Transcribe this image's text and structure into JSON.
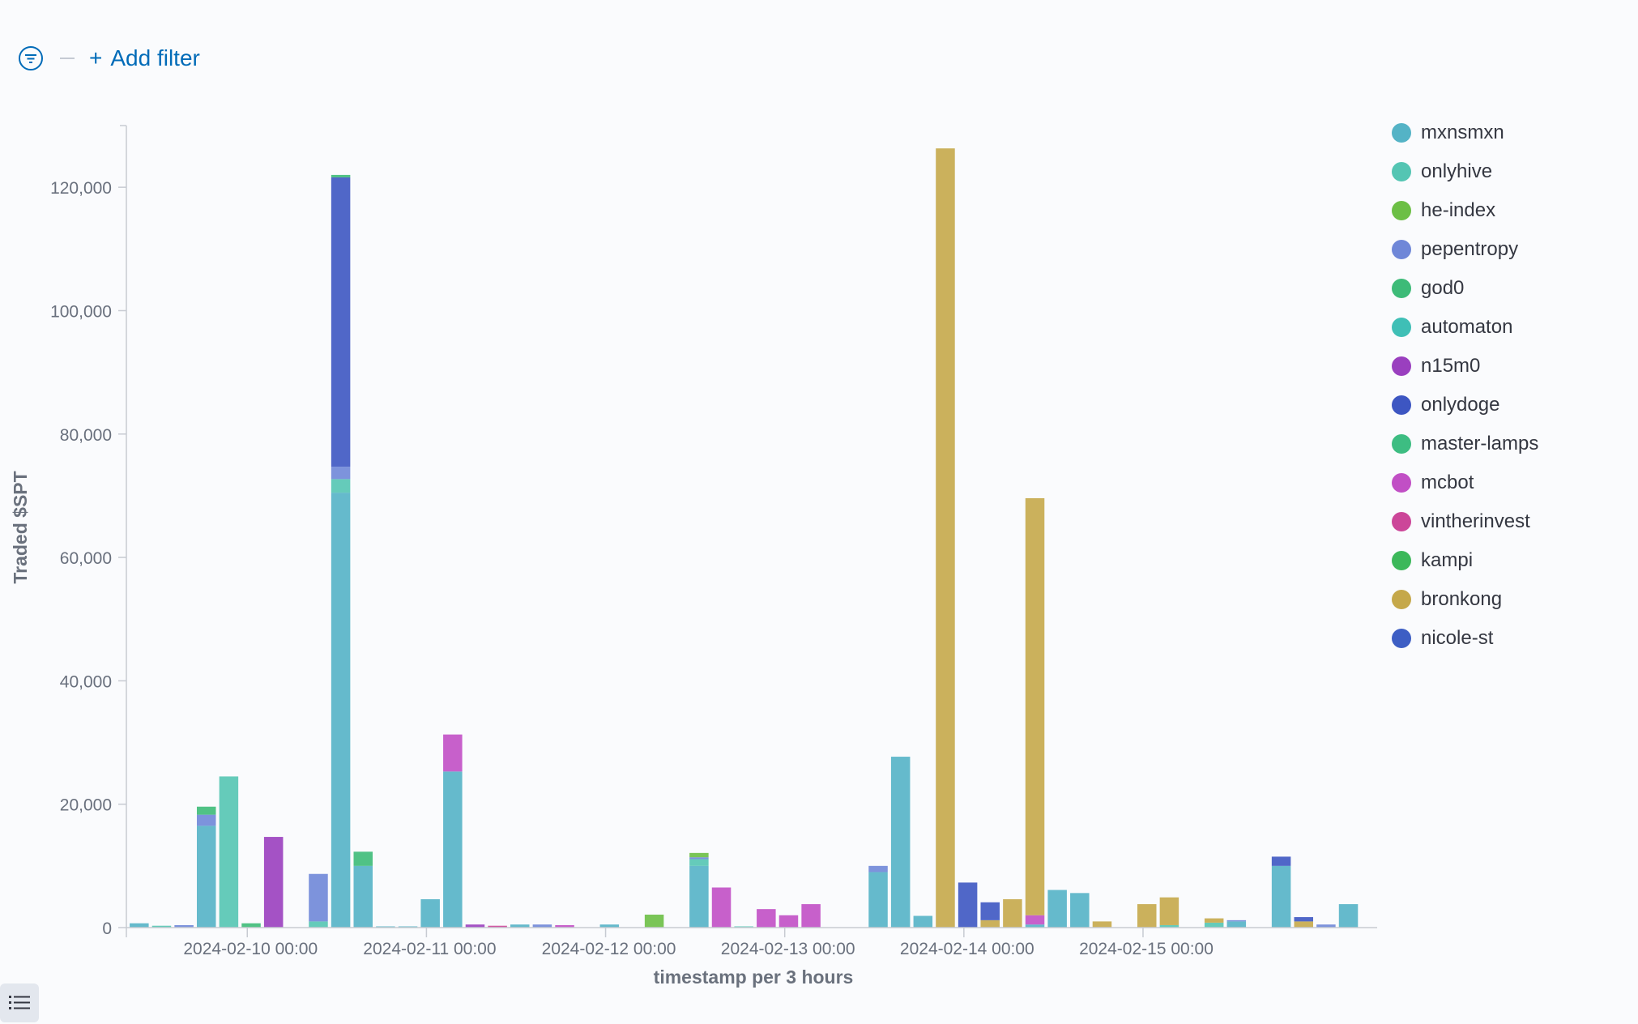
{
  "filter_bar": {
    "add_filter_label": "Add filter",
    "plus": "+"
  },
  "legend_toggle": {
    "icon": "list-icon"
  },
  "chart_data": {
    "type": "bar",
    "stacked": true,
    "xlabel": "timestamp per 3 hours",
    "ylabel": "Traded $SPT",
    "ylim": [
      0,
      130000
    ],
    "yticks": [
      0,
      20000,
      40000,
      60000,
      80000,
      100000,
      120000
    ],
    "ytick_labels": [
      "0",
      "20,000",
      "40,000",
      "60,000",
      "80,000",
      "100,000",
      "120,000"
    ],
    "xticks": [
      {
        "label": "2024-02-10 00:00",
        "index": 5.4
      },
      {
        "label": "2024-02-11 00:00",
        "index": 13.4
      },
      {
        "label": "2024-02-12 00:00",
        "index": 21.4
      },
      {
        "label": "2024-02-13 00:00",
        "index": 29.4
      },
      {
        "label": "2024-02-14 00:00",
        "index": 37.4
      },
      {
        "label": "2024-02-15 00:00",
        "index": 45.4
      }
    ],
    "legend_position": "right",
    "series": [
      {
        "name": "mxnsmxn",
        "color": "#54b3c6"
      },
      {
        "name": "onlyhive",
        "color": "#54c5b3"
      },
      {
        "name": "he-index",
        "color": "#6cbf45"
      },
      {
        "name": "pepentropy",
        "color": "#6f87d8"
      },
      {
        "name": "god0",
        "color": "#3dbb78"
      },
      {
        "name": "automaton",
        "color": "#3fbfb6"
      },
      {
        "name": "n15m0",
        "color": "#9a3fbf"
      },
      {
        "name": "onlydoge",
        "color": "#3d56c2"
      },
      {
        "name": "master-lamps",
        "color": "#3dbd82"
      },
      {
        "name": "mcbot",
        "color": "#c14fc5"
      },
      {
        "name": "vintherinvest",
        "color": "#cc4699"
      },
      {
        "name": "kampi",
        "color": "#3cb85a"
      },
      {
        "name": "bronkong",
        "color": "#c5a84a"
      },
      {
        "name": "nicole-st",
        "color": "#3d5ec4"
      }
    ],
    "bars": [
      {
        "i": 0,
        "seg": [
          {
            "s": "mxnsmxn",
            "v": 700
          }
        ]
      },
      {
        "i": 1,
        "seg": [
          {
            "s": "onlyhive",
            "v": 300
          }
        ]
      },
      {
        "i": 2,
        "seg": [
          {
            "s": "pepentropy",
            "v": 400
          }
        ]
      },
      {
        "i": 3,
        "seg": [
          {
            "s": "mxnsmxn",
            "v": 16500
          },
          {
            "s": "pepentropy",
            "v": 1800
          },
          {
            "s": "god0",
            "v": 1300
          }
        ]
      },
      {
        "i": 4,
        "seg": [
          {
            "s": "onlyhive",
            "v": 24500
          }
        ]
      },
      {
        "i": 5,
        "seg": [
          {
            "s": "god0",
            "v": 700
          }
        ]
      },
      {
        "i": 6,
        "seg": [
          {
            "s": "n15m0",
            "v": 14700
          }
        ]
      },
      {
        "i": 8,
        "seg": [
          {
            "s": "onlyhive",
            "v": 1000
          },
          {
            "s": "pepentropy",
            "v": 7700
          }
        ]
      },
      {
        "i": 9,
        "seg": [
          {
            "s": "mxnsmxn",
            "v": 70500
          },
          {
            "s": "onlyhive",
            "v": 2200
          },
          {
            "s": "pepentropy",
            "v": 2000
          },
          {
            "s": "onlydoge",
            "v": 46900
          },
          {
            "s": "god0",
            "v": 400
          }
        ]
      },
      {
        "i": 10,
        "seg": [
          {
            "s": "mxnsmxn",
            "v": 10000
          },
          {
            "s": "god0",
            "v": 2300
          }
        ]
      },
      {
        "i": 11,
        "seg": [
          {
            "s": "mxnsmxn",
            "v": 100
          }
        ]
      },
      {
        "i": 12,
        "seg": [
          {
            "s": "mxnsmxn",
            "v": 100
          }
        ]
      },
      {
        "i": 13,
        "seg": [
          {
            "s": "mxnsmxn",
            "v": 4600
          }
        ]
      },
      {
        "i": 14,
        "seg": [
          {
            "s": "mxnsmxn",
            "v": 25300
          },
          {
            "s": "mcbot",
            "v": 6000
          }
        ]
      },
      {
        "i": 15,
        "seg": [
          {
            "s": "n15m0",
            "v": 500
          }
        ]
      },
      {
        "i": 16,
        "seg": [
          {
            "s": "vintherinvest",
            "v": 300
          }
        ]
      },
      {
        "i": 17,
        "seg": [
          {
            "s": "mxnsmxn",
            "v": 500
          }
        ]
      },
      {
        "i": 18,
        "seg": [
          {
            "s": "pepentropy",
            "v": 500
          }
        ]
      },
      {
        "i": 19,
        "seg": [
          {
            "s": "mcbot",
            "v": 400
          }
        ]
      },
      {
        "i": 21,
        "seg": [
          {
            "s": "mxnsmxn",
            "v": 500
          }
        ]
      },
      {
        "i": 23,
        "seg": [
          {
            "s": "he-index",
            "v": 2100
          }
        ]
      },
      {
        "i": 25,
        "seg": [
          {
            "s": "mxnsmxn",
            "v": 10000
          },
          {
            "s": "onlyhive",
            "v": 1100
          },
          {
            "s": "pepentropy",
            "v": 300
          },
          {
            "s": "he-index",
            "v": 700
          }
        ]
      },
      {
        "i": 26,
        "seg": [
          {
            "s": "mcbot",
            "v": 6500
          }
        ]
      },
      {
        "i": 27,
        "seg": [
          {
            "s": "onlyhive",
            "v": 200
          }
        ]
      },
      {
        "i": 28,
        "seg": [
          {
            "s": "mcbot",
            "v": 3000
          }
        ]
      },
      {
        "i": 29,
        "seg": [
          {
            "s": "mcbot",
            "v": 2000
          }
        ]
      },
      {
        "i": 30,
        "seg": [
          {
            "s": "mcbot",
            "v": 3800
          }
        ]
      },
      {
        "i": 33,
        "seg": [
          {
            "s": "mxnsmxn",
            "v": 9000
          },
          {
            "s": "pepentropy",
            "v": 1000
          }
        ]
      },
      {
        "i": 34,
        "seg": [
          {
            "s": "mxnsmxn",
            "v": 27700
          }
        ]
      },
      {
        "i": 35,
        "seg": [
          {
            "s": "mxnsmxn",
            "v": 1900
          }
        ]
      },
      {
        "i": 36,
        "seg": [
          {
            "s": "bronkong",
            "v": 126300
          }
        ]
      },
      {
        "i": 37,
        "seg": [
          {
            "s": "onlydoge",
            "v": 7300
          }
        ]
      },
      {
        "i": 38,
        "seg": [
          {
            "s": "bronkong",
            "v": 1200
          },
          {
            "s": "onlydoge",
            "v": 2900
          }
        ]
      },
      {
        "i": 39,
        "seg": [
          {
            "s": "bronkong",
            "v": 4600
          }
        ]
      },
      {
        "i": 40,
        "seg": [
          {
            "s": "mxnsmxn",
            "v": 500
          },
          {
            "s": "mcbot",
            "v": 1500
          },
          {
            "s": "bronkong",
            "v": 67600
          }
        ]
      },
      {
        "i": 41,
        "seg": [
          {
            "s": "mxnsmxn",
            "v": 6100
          }
        ]
      },
      {
        "i": 42,
        "seg": [
          {
            "s": "mxnsmxn",
            "v": 5600
          }
        ]
      },
      {
        "i": 43,
        "seg": [
          {
            "s": "bronkong",
            "v": 1000
          }
        ]
      },
      {
        "i": 45,
        "seg": [
          {
            "s": "bronkong",
            "v": 3800
          }
        ]
      },
      {
        "i": 46,
        "seg": [
          {
            "s": "onlyhive",
            "v": 400
          },
          {
            "s": "bronkong",
            "v": 4500
          }
        ]
      },
      {
        "i": 48,
        "seg": [
          {
            "s": "onlyhive",
            "v": 800
          },
          {
            "s": "bronkong",
            "v": 700
          }
        ]
      },
      {
        "i": 49,
        "seg": [
          {
            "s": "mxnsmxn",
            "v": 1000
          },
          {
            "s": "pepentropy",
            "v": 200
          }
        ]
      },
      {
        "i": 51,
        "seg": [
          {
            "s": "mxnsmxn",
            "v": 10000
          },
          {
            "s": "onlydoge",
            "v": 1500
          }
        ]
      },
      {
        "i": 52,
        "seg": [
          {
            "s": "bronkong",
            "v": 1000
          },
          {
            "s": "onlydoge",
            "v": 700
          }
        ]
      },
      {
        "i": 53,
        "seg": [
          {
            "s": "pepentropy",
            "v": 500
          }
        ]
      },
      {
        "i": 54,
        "seg": [
          {
            "s": "mxnsmxn",
            "v": 3800
          }
        ]
      }
    ]
  }
}
